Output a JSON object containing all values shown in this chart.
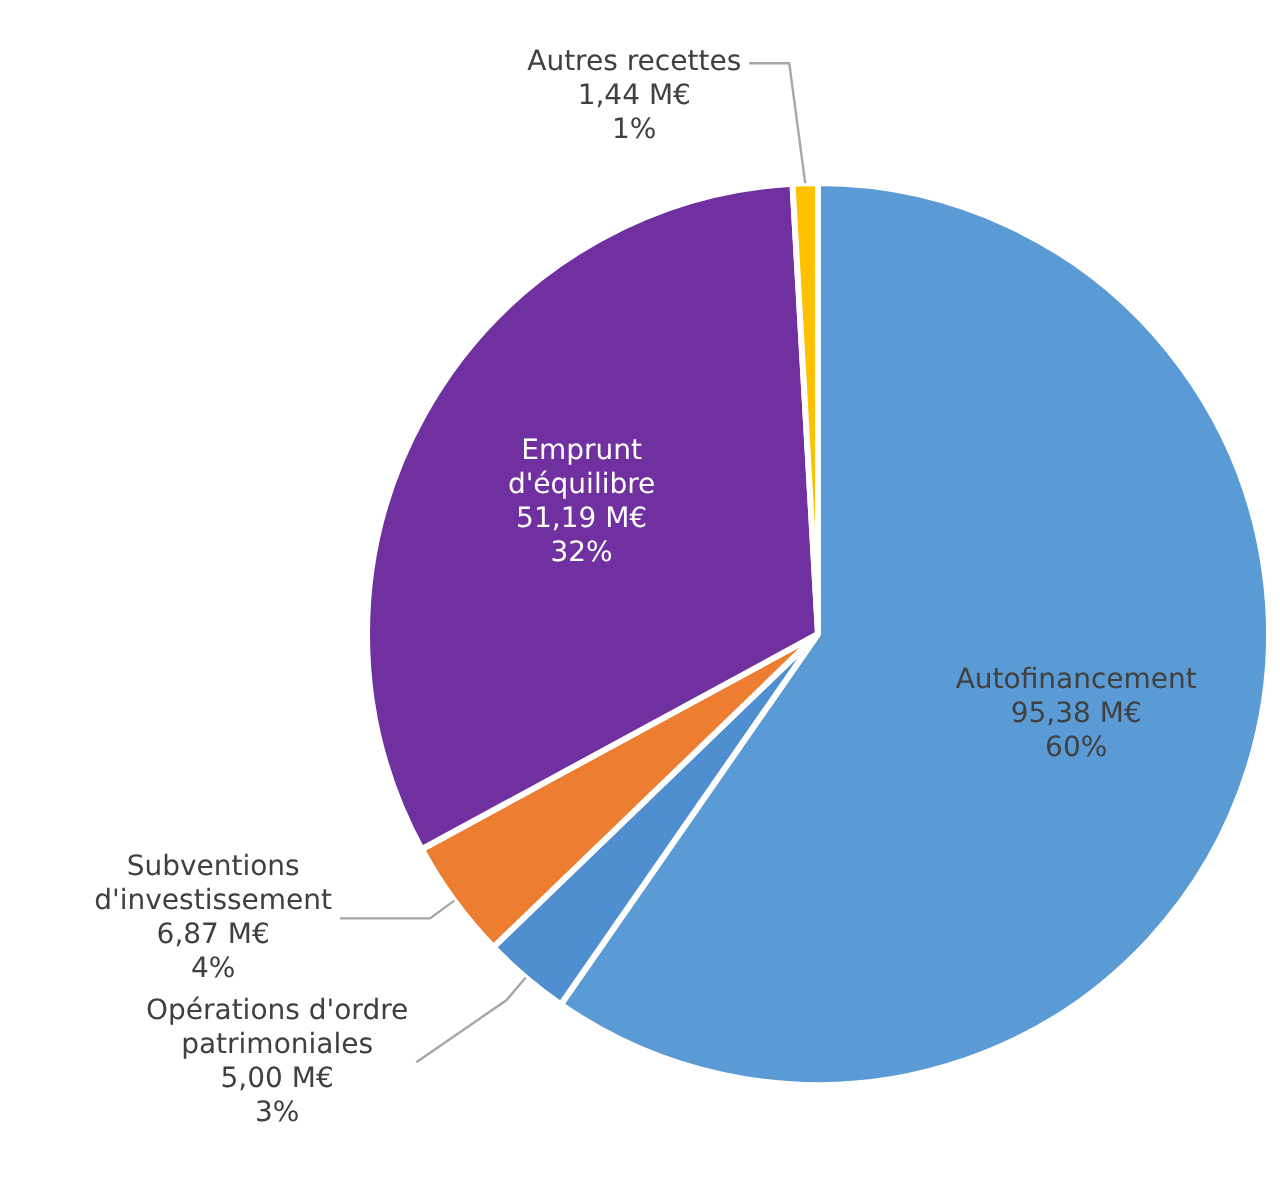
{
  "chart_data": {
    "type": "pie",
    "categories": [
      "Autofinancement",
      "Opérations d'ordre patrimoniales",
      "Subventions d'investissement",
      "Emprunt d'équilibre",
      "Autres recettes"
    ],
    "values": [
      95.38,
      5.0,
      6.87,
      51.19,
      1.44
    ],
    "colors": [
      "#5b9bd5",
      "#4f8fcf",
      "#ed7d31",
      "#7030a0",
      "#ffc000"
    ],
    "value_labels": [
      "95,38 M€\n60%",
      "5,00 M€\n3%",
      "6,87 M€\n4%",
      "51,19 M€\n32%",
      "1,44 M€\n1%"
    ],
    "legend": false
  }
}
